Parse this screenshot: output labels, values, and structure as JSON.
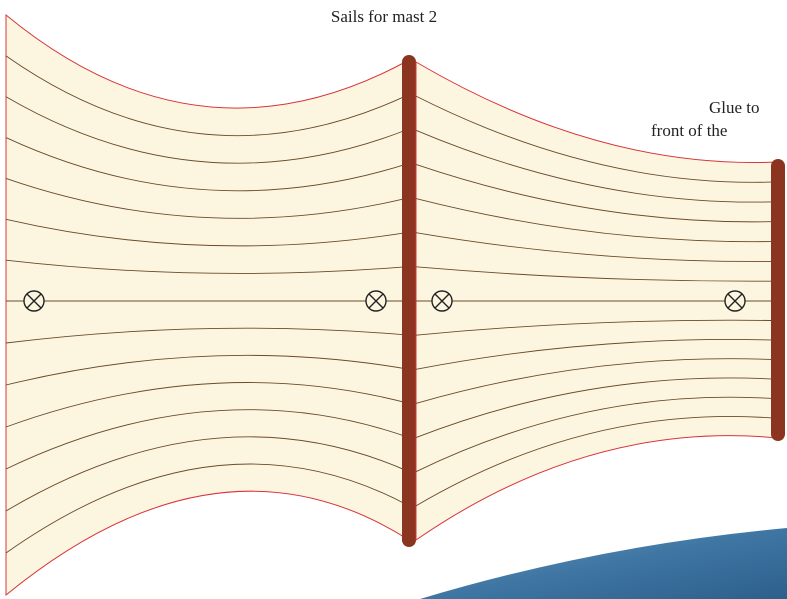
{
  "title": "Sails for mast 2",
  "note": {
    "lines": [
      "Glue to",
      "front of the"
    ]
  }
}
